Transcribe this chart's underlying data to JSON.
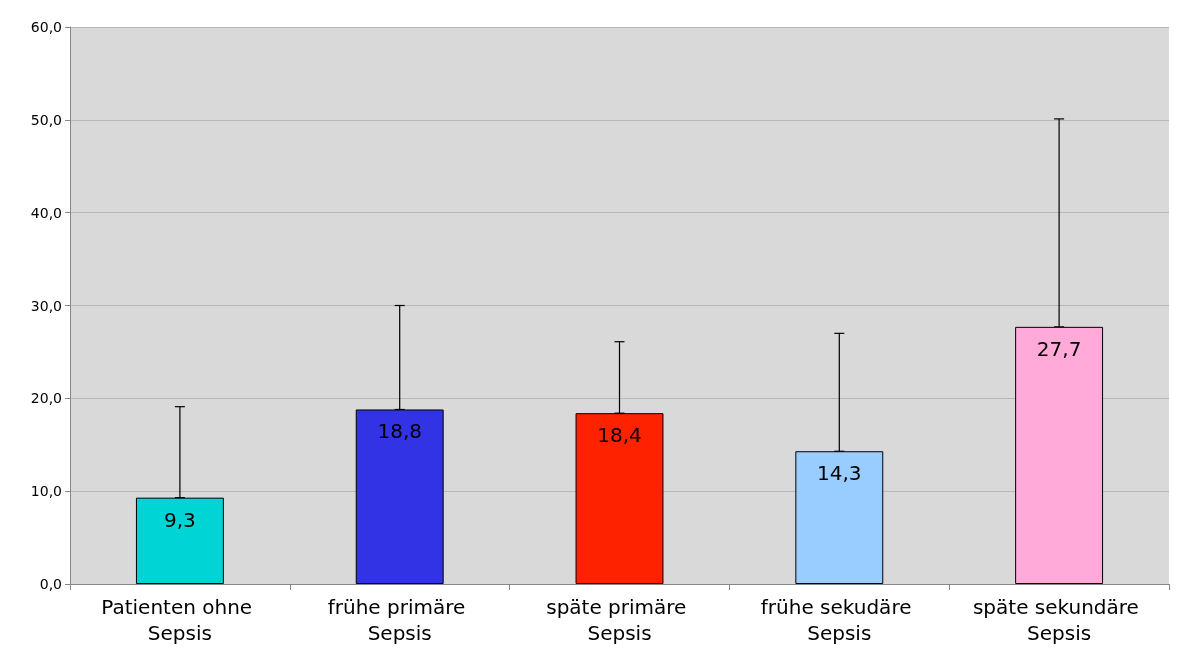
{
  "chart_data": {
    "type": "bar",
    "categories": [
      "Patienten ohne Sepsis",
      "frühe primäre Sepsis",
      "späte primäre Sepsis",
      "frühe sekudäre Sepsis",
      "späte sekundäre Sepsis"
    ],
    "values": [
      9.3,
      18.8,
      18.4,
      14.3,
      27.7
    ],
    "colors": [
      "#00d4d4",
      "#3333e6",
      "#ff2200",
      "#99ccff",
      "#ffaad8"
    ],
    "errors": [
      [
        9.3,
        19.1
      ],
      [
        18.8,
        30.0
      ],
      [
        18.4,
        26.1
      ],
      [
        14.3,
        27.0
      ],
      [
        27.7,
        50.1
      ]
    ],
    "value_labels": [
      "9,3",
      "18,8",
      "18,4",
      "14,3",
      "27,7"
    ],
    "ylim": [
      0,
      60
    ],
    "yticks": [
      {
        "value": 0,
        "label": "0,0"
      },
      {
        "value": 10,
        "label": "10,0"
      },
      {
        "value": 20,
        "label": "20,0"
      },
      {
        "value": 30,
        "label": "30,0"
      },
      {
        "value": 40,
        "label": "40,0"
      },
      {
        "value": 50,
        "label": "50,0"
      },
      {
        "value": 60,
        "label": "60,0"
      }
    ],
    "grid": "y"
  }
}
